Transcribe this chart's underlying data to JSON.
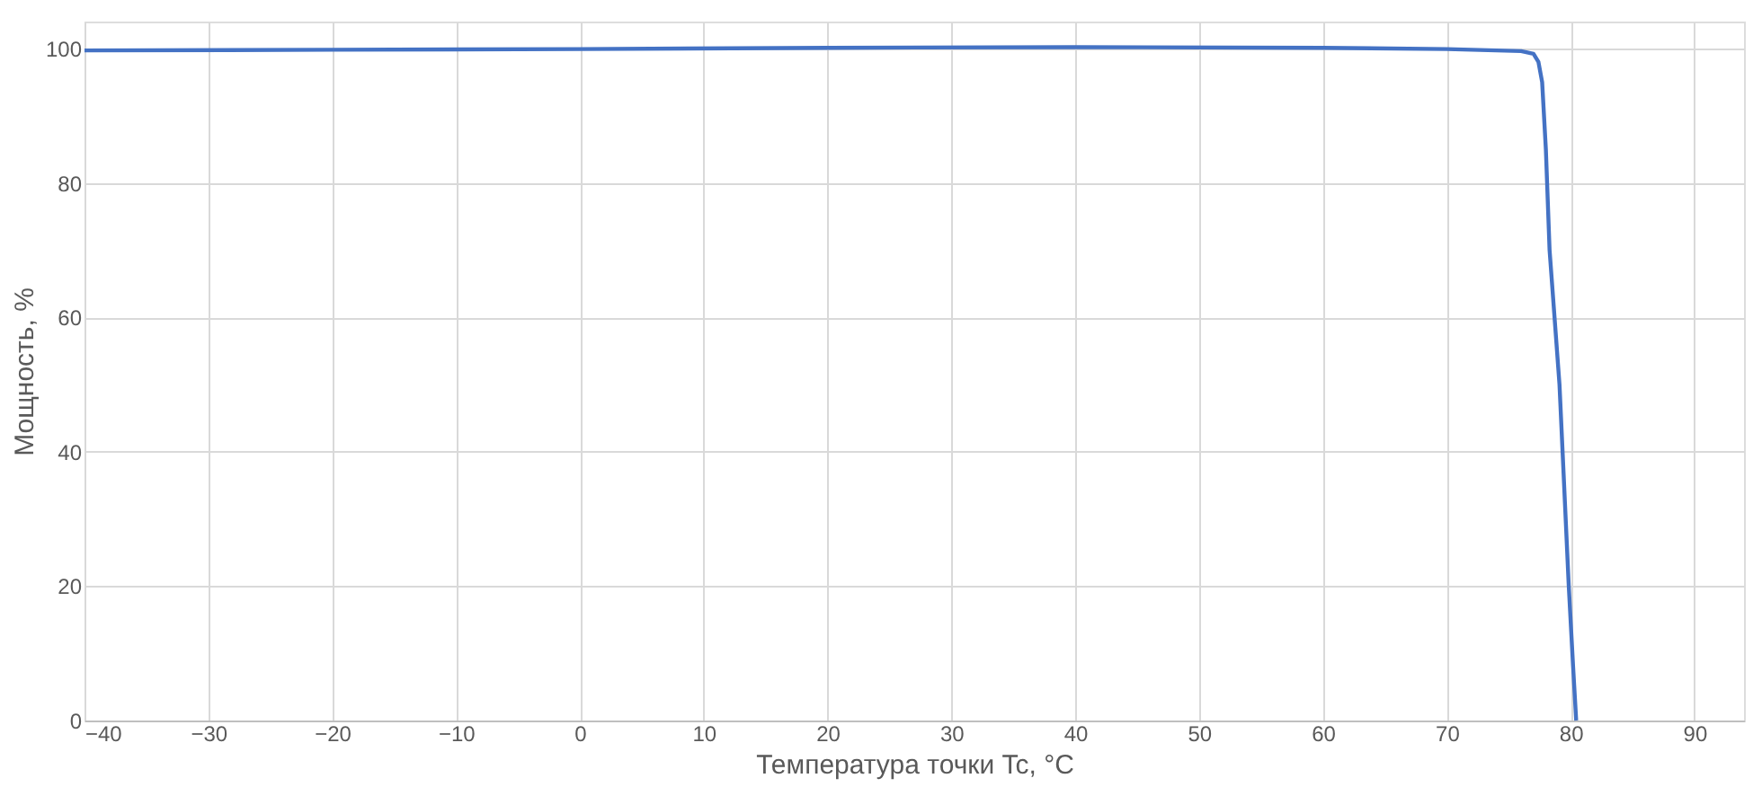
{
  "chart_data": {
    "type": "line",
    "xlabel": "Температура точки Tc, °C",
    "ylabel": "Мощность, %",
    "x": [
      -40,
      -20,
      0,
      20,
      40,
      60,
      70,
      76,
      77,
      77.4,
      77.7,
      78,
      78.3,
      79.1,
      79.85,
      80.2,
      80.45
    ],
    "series": [
      {
        "color": "#4472c4",
        "values": [
          99.7,
          99.8,
          99.9,
          100.1,
          100.2,
          100.1,
          99.9,
          99.6,
          99.2,
          98,
          95,
          85,
          70,
          50,
          20,
          8,
          0
        ]
      }
    ],
    "xlim": [
      -40,
      94
    ],
    "xticks": [
      -40,
      -30,
      -20,
      -10,
      0,
      10,
      20,
      30,
      40,
      50,
      60,
      70,
      80,
      90
    ],
    "ylim": [
      0,
      104
    ],
    "yticks": [
      0,
      20,
      40,
      60,
      80,
      100
    ],
    "grid": true,
    "marker": "none",
    "line_style": "solid"
  }
}
